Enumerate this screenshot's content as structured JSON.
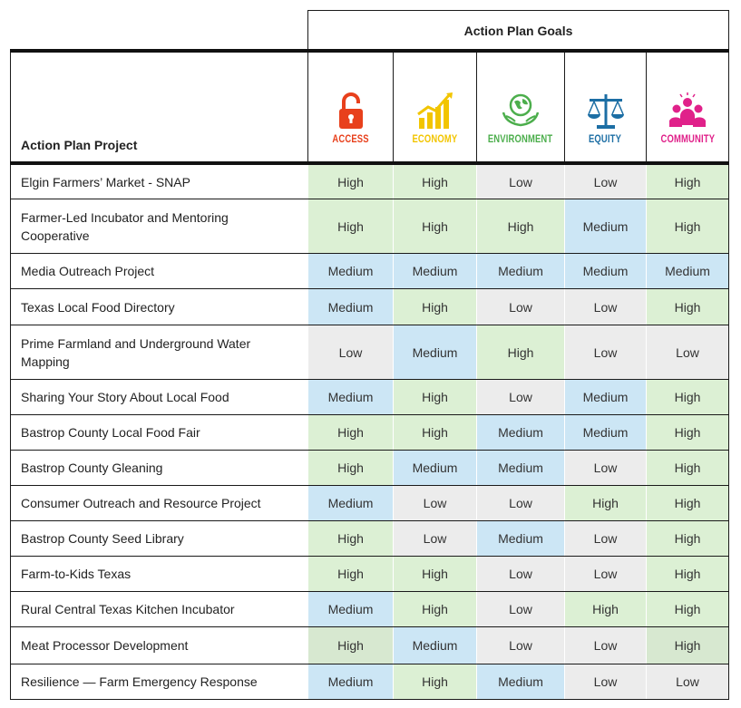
{
  "header": {
    "goals_title": "Action Plan Goals",
    "project_title": "Action Plan Project"
  },
  "goals": [
    {
      "label": "ACCESS",
      "icon": "padlock-open-icon",
      "color": "#e8401c"
    },
    {
      "label": "ECONOMY",
      "icon": "rising-bar-chart-icon",
      "color": "#f2c500"
    },
    {
      "label": "ENVIRONMENT",
      "icon": "globe-hands-icon",
      "color": "#4cae4c"
    },
    {
      "label": "EQUITY",
      "icon": "scales-icon",
      "color": "#1c6ea4"
    },
    {
      "label": "COMMUNITY",
      "icon": "people-group-icon",
      "color": "#e0218a"
    }
  ],
  "level_colors": {
    "High": "#dcf0d4",
    "Medium": "#cce6f5",
    "Low": "#ececec"
  },
  "rows": [
    {
      "project": "Elgin Farmers’ Market - SNAP",
      "values": [
        "High",
        "High",
        "Low",
        "Low",
        "High"
      ]
    },
    {
      "project": "Farmer-Led Incubator and Mentoring Cooperative",
      "values": [
        "High",
        "High",
        "High",
        "Medium",
        "High"
      ]
    },
    {
      "project": "Media Outreach Project",
      "values": [
        "Medium",
        "Medium",
        "Medium",
        "Medium",
        "Medium"
      ]
    },
    {
      "project": "Texas Local Food Directory",
      "values": [
        "Medium",
        "High",
        "Low",
        "Low",
        "High"
      ]
    },
    {
      "project": "Prime Farmland and Underground Water Mapping",
      "values": [
        "Low",
        "Medium",
        "High",
        "Low",
        "Low"
      ]
    },
    {
      "project": "Sharing Your Story About Local Food",
      "values": [
        "Medium",
        "High",
        "Low",
        "Medium",
        "High"
      ]
    },
    {
      "project": "Bastrop County Local Food Fair",
      "values": [
        "High",
        "High",
        "Medium",
        "Medium",
        "High"
      ]
    },
    {
      "project": "Bastrop County Gleaning",
      "values": [
        "High",
        "Medium",
        "Medium",
        "Low",
        "High"
      ]
    },
    {
      "project": "Consumer Outreach and Resource Project",
      "values": [
        "Medium",
        "Low",
        "Low",
        "High",
        "High"
      ]
    },
    {
      "project": "Bastrop County Seed Library",
      "values": [
        "High",
        "Low",
        "Medium",
        "Low",
        "High"
      ]
    },
    {
      "project": "Farm-to-Kids Texas",
      "values": [
        "High",
        "High",
        "Low",
        "Low",
        "High"
      ]
    },
    {
      "project": "Rural Central Texas Kitchen Incubator",
      "values": [
        "Medium",
        "High",
        "Low",
        "High",
        "High"
      ]
    },
    {
      "project": "Meat Processor Development",
      "values": [
        "High",
        "Medium",
        "Low",
        "Low",
        "High"
      ]
    },
    {
      "project": "Resilience — Farm Emergency Response",
      "values": [
        "Medium",
        "High",
        "Medium",
        "Low",
        "Low"
      ]
    }
  ]
}
